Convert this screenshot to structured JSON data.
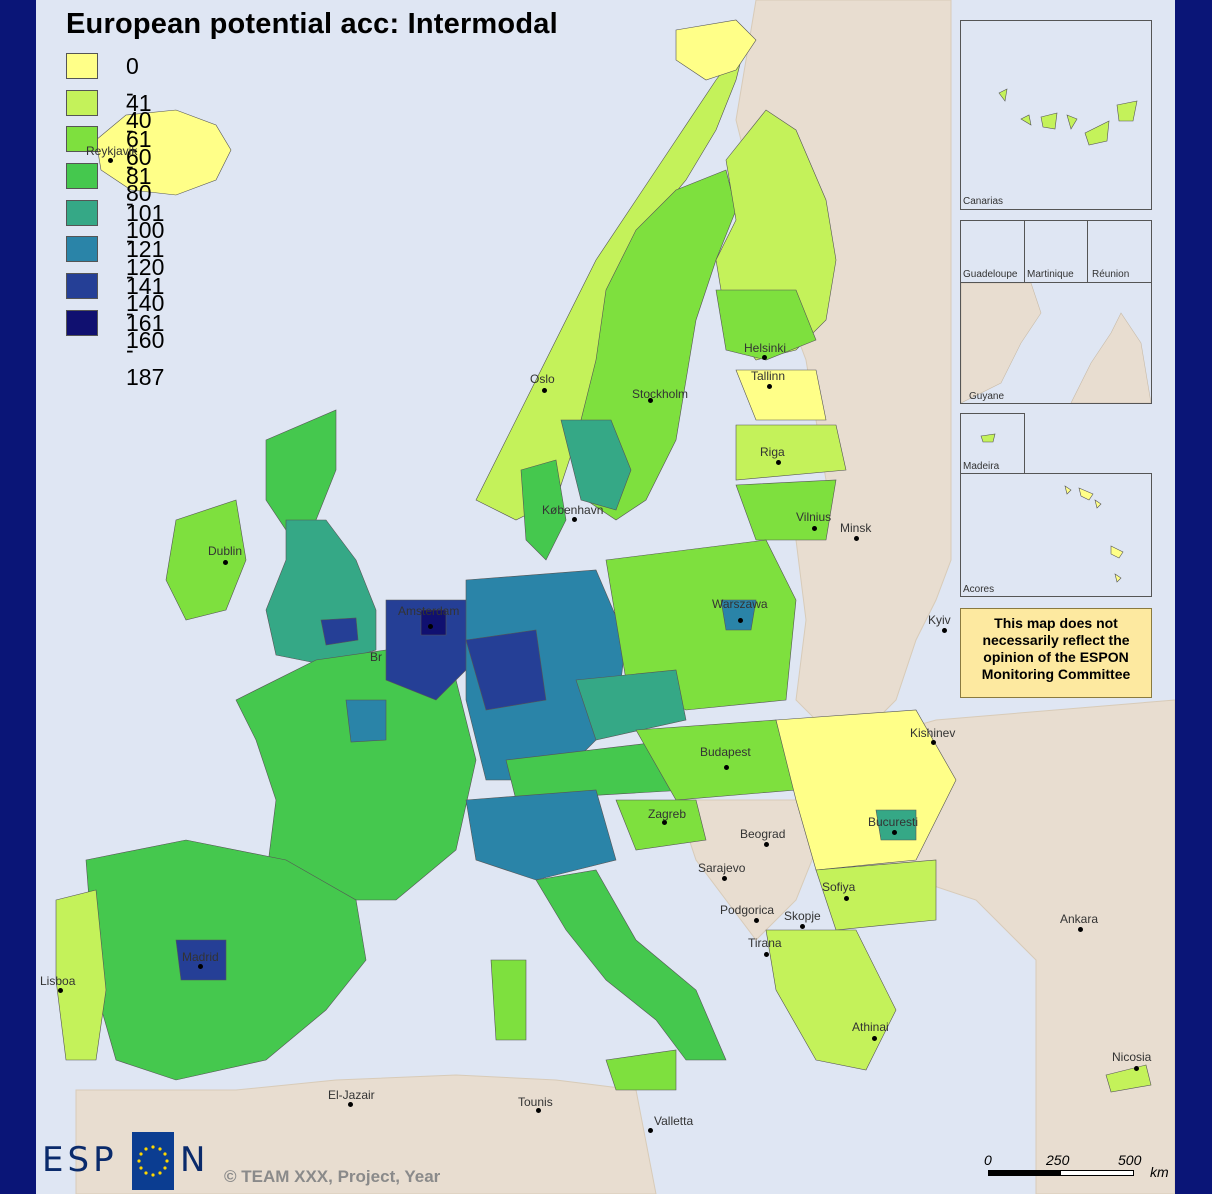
{
  "title": "European potential acc: Intermodal",
  "legend": [
    {
      "label": "0 - 40",
      "color": "#ffff88"
    },
    {
      "label": "41 - 60",
      "color": "#c4f25a"
    },
    {
      "label": "61 - 80",
      "color": "#7ee03e"
    },
    {
      "label": "81 - 100",
      "color": "#45c84e"
    },
    {
      "label": "101 - 120",
      "color": "#35a886"
    },
    {
      "label": "121 - 140",
      "color": "#2a84a8"
    },
    {
      "label": "141 - 160",
      "color": "#253f96"
    },
    {
      "label": "161 - 187",
      "color": "#101070"
    }
  ],
  "cities": {
    "reykjavik": "Reykjavik",
    "oslo": "Oslo",
    "stockholm": "Stockholm",
    "helsinki": "Helsinki",
    "tallinn": "Tallinn",
    "riga": "Riga",
    "vilnius": "Vilnius",
    "minsk": "Minsk",
    "kobenhavn": "København",
    "dublin": "Dublin",
    "amsterdam": "Amsterdam",
    "bruxelles": "Br",
    "warszawa": "Warszawa",
    "kyiv": "Kyiv",
    "kishinev": "Kishinev",
    "budapest": "Budapest",
    "bucuresti": "Bucuresti",
    "zagreb": "Zagreb",
    "beograd": "Beograd",
    "sarajevo": "Sarajevo",
    "podgorica": "Podgorica",
    "skopje": "Skopje",
    "sofiya": "Sofiya",
    "tirana": "Tirana",
    "ankara": "Ankara",
    "athinai": "Athinai",
    "nicosia": "Nicosia",
    "madrid": "Madrid",
    "lisboa": "Lisboa",
    "el_jazair": "El-Jazair",
    "tounis": "Tounis",
    "valletta": "Valletta"
  },
  "insets": {
    "canarias": "Canarias",
    "guadeloupe": "Guadeloupe",
    "martinique": "Martinique",
    "reunion": "Réunion",
    "guyane": "Guyane",
    "madeira": "Madeira",
    "acores": "Acores"
  },
  "disclaimer": "This map does not necessarily reflect the opinion of the ESPON Monitoring Committee",
  "copyright": "© TEAM XXX, Project, Year",
  "logo": {
    "letters_left": "ESP",
    "letters_right": "N"
  },
  "scale": {
    "t0": "0",
    "t1": "250",
    "t2": "500",
    "unit": "km"
  },
  "colors": {
    "frame": "#0a1577",
    "sea": "#dfe6f3",
    "nonESPON_land": "#e8ddd0"
  }
}
